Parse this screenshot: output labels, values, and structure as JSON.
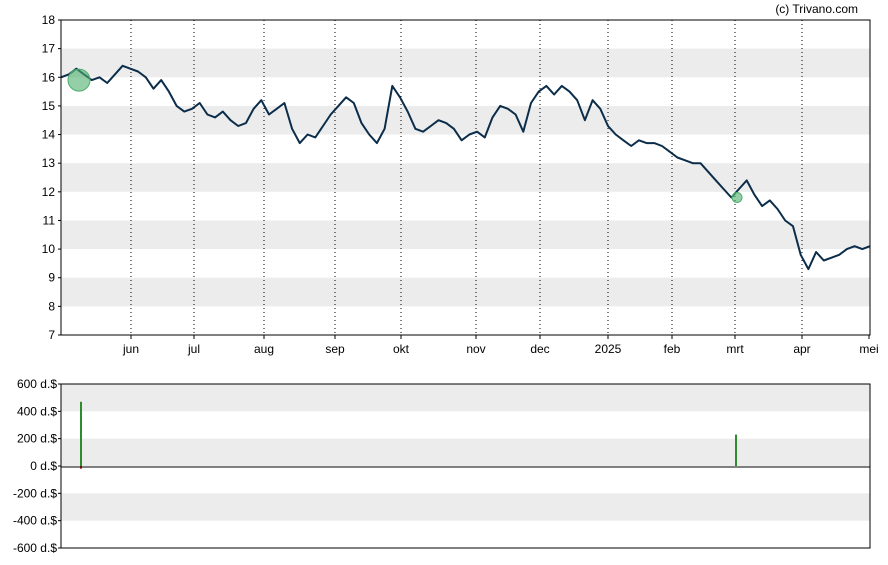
{
  "credit": "(c) Trivano.com",
  "colors": {
    "line": "#0b2d4a",
    "band": "#ececec",
    "marker": "#4caf6e",
    "buy": "#2e8b2e",
    "sell": "#cc2222",
    "frame": "#000000"
  },
  "chart_data": [
    {
      "type": "line",
      "grid": "dotted vertical at months, alternating horizontal bands",
      "ylim": [
        7,
        18
      ],
      "yticks": [
        "7",
        "8",
        "9",
        "10",
        "11",
        "12",
        "13",
        "14",
        "15",
        "16",
        "17",
        "18"
      ],
      "months": [
        "jun",
        "jul",
        "aug",
        "sep",
        "okt",
        "nov",
        "dec",
        "2025",
        "feb",
        "mrt",
        "apr",
        "mei"
      ],
      "series": [
        {
          "values": [
            16.0,
            16.1,
            16.3,
            16.1,
            15.9,
            16.0,
            15.8,
            16.1,
            16.4,
            16.3,
            16.2,
            16.0,
            15.6,
            15.9,
            15.5,
            15.0,
            14.8,
            14.9,
            15.1,
            14.7,
            14.6,
            14.8,
            14.5,
            14.3,
            14.4,
            14.9,
            15.2,
            14.7,
            14.9,
            15.1,
            14.2,
            13.7,
            14.0,
            13.9,
            14.3,
            14.7,
            15.0,
            15.3,
            15.1,
            14.4,
            14.0,
            13.7,
            14.2,
            15.7,
            15.3,
            14.8,
            14.2,
            14.1,
            14.3,
            14.5,
            14.4,
            14.2,
            13.8,
            14.0,
            14.1,
            13.9,
            14.6,
            15.0,
            14.9,
            14.7,
            14.1,
            15.1,
            15.5,
            15.7,
            15.4,
            15.7,
            15.5,
            15.2,
            14.5,
            15.2,
            14.9,
            14.3,
            14.0,
            13.8,
            13.6,
            13.8,
            13.7,
            13.7,
            13.6,
            13.4,
            13.2,
            13.1,
            13.0,
            13.0,
            12.7,
            12.4,
            12.1,
            11.8,
            12.1,
            12.4,
            11.9,
            11.5,
            11.7,
            11.4,
            11.0,
            10.8,
            9.8,
            9.3,
            9.9,
            9.6,
            9.7,
            9.8,
            10.0,
            10.1,
            10.0,
            10.1
          ]
        }
      ],
      "markers": [
        {
          "label": "large-marker",
          "value": 15.9
        },
        {
          "label": "small-marker",
          "value": 11.8
        }
      ]
    },
    {
      "type": "bar",
      "ylim": [
        -600,
        600
      ],
      "yticks": [
        "600 d.$",
        "400 d.$",
        "200 d.$",
        "0 d.$",
        "-200 d.$",
        "-400 d.$",
        "-600 d.$"
      ],
      "bars": [
        {
          "position": "mid-may",
          "buy": 470,
          "sell": -20
        },
        {
          "position": "early-mrt",
          "buy": 230,
          "sell": 0
        }
      ]
    }
  ]
}
